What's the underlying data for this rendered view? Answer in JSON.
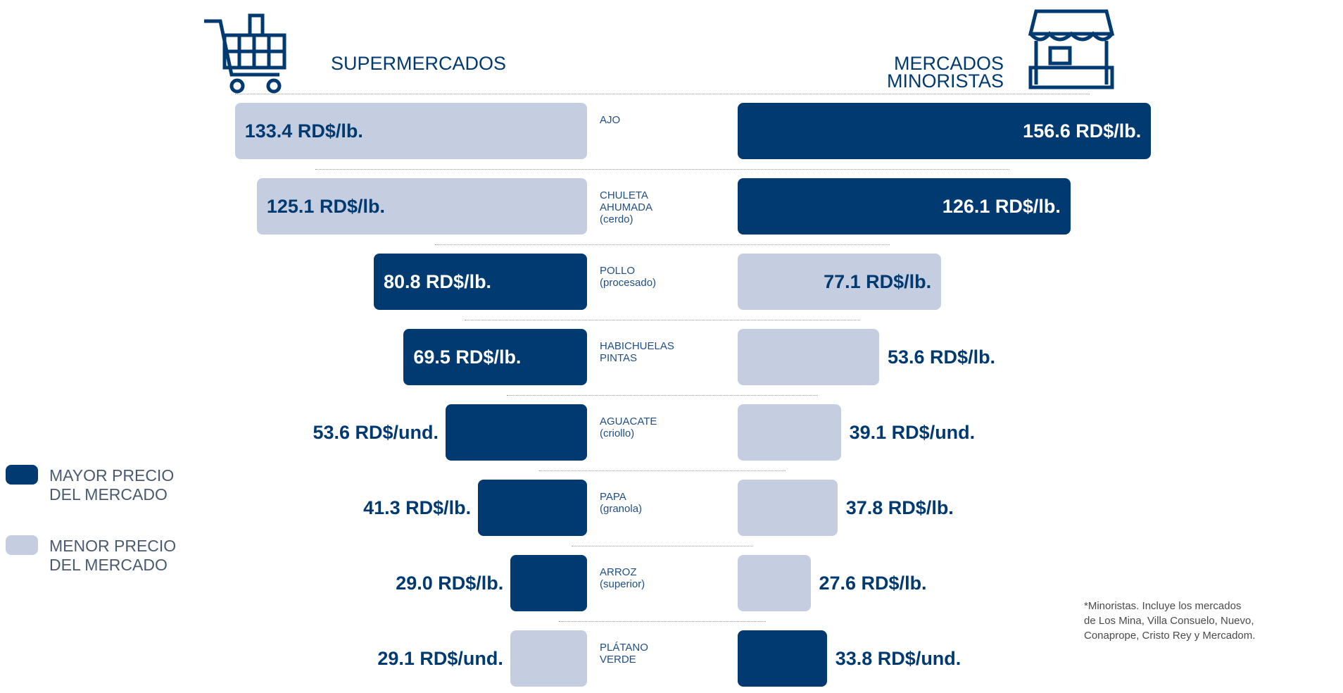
{
  "chart_data": {
    "type": "butterfly",
    "categories": [
      "AJO",
      "CHULETA\nAHUMADA\n(cerdo)",
      "POLLO\n(procesado)",
      "HABICHUELAS\nPINTAS",
      "AGUACATE\n(criollo)",
      "PAPA\n(granola)",
      "ARROZ\n(superior)",
      "PLÁTANO\nVERDE"
    ],
    "series": [
      {
        "name": "SUPERMERCADOS",
        "side": "left",
        "values": [
          133.4,
          125.1,
          80.8,
          69.5,
          53.6,
          41.3,
          29.0,
          29.1
        ],
        "value_labels": [
          "133.4 RD$/lb.",
          "125.1 RD$/lb.",
          "80.8 RD$/lb.",
          "69.5 RD$/lb.",
          "53.6 RD$/und.",
          "41.3 RD$/lb.",
          "29.0 RD$/lb.",
          "29.1 RD$/und."
        ]
      },
      {
        "name": "MERCADOS\nMINORISTAS",
        "side": "right",
        "values": [
          156.6,
          126.1,
          77.1,
          53.6,
          39.1,
          37.8,
          27.6,
          33.8
        ],
        "value_labels": [
          "156.6 RD$/lb.",
          "126.1 RD$/lb.",
          "77.1 RD$/lb.",
          "53.6 RD$/lb.",
          "39.1 RD$/und.",
          "37.8 RD$/lb.",
          "27.6 RD$/lb.",
          "33.8 RD$/und."
        ]
      }
    ],
    "xlim": [
      0,
      160
    ],
    "legend": [
      {
        "label": "MAYOR PRECIO\nDEL MERCADO",
        "color": "#003a70"
      },
      {
        "label": "MENOR PRECIO\nDEL MERCADO",
        "color": "#c5cde0"
      }
    ],
    "footnote": "*Minoristas. Incluye los mercados\nde Los Mina, Villa Consuelo, Nuevo,\nConaprope, Cristo Rey y Mercadom."
  }
}
